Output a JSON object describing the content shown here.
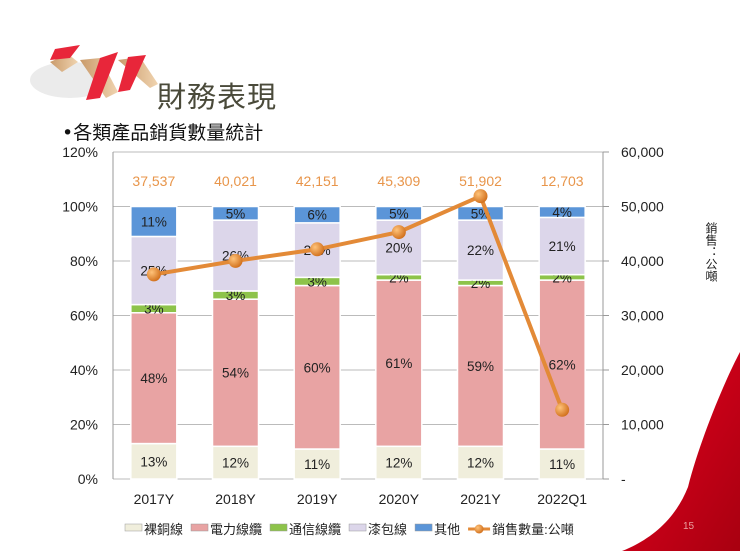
{
  "title": "財務表現",
  "subtitle": "•各類產品銷貨數量統計",
  "page_number": "15",
  "colors": {
    "bare_copper": "#f0eedc",
    "power_cable": "#e8a3a3",
    "telecom_cable": "#8dc34a",
    "enamel_wire": "#dcd6ea",
    "other": "#5b95d8",
    "sales_line": "#e38a37",
    "accent_red": "#d9001a"
  },
  "chart_data": {
    "type": "bar",
    "stacked": true,
    "categories": [
      "2017Y",
      "2018Y",
      "2019Y",
      "2020Y",
      "2021Y",
      "2022Q1"
    ],
    "series": [
      {
        "name": "裸銅線",
        "values": [
          13,
          12,
          11,
          12,
          12,
          11
        ]
      },
      {
        "name": "電力線纜",
        "values": [
          48,
          54,
          60,
          61,
          59,
          62
        ]
      },
      {
        "name": "通信線纜",
        "values": [
          3,
          3,
          3,
          2,
          2,
          2
        ]
      },
      {
        "name": "漆包線",
        "values": [
          25,
          26,
          20,
          20,
          22,
          21
        ]
      },
      {
        "name": "其他",
        "values": [
          11,
          5,
          6,
          5,
          5,
          4
        ]
      }
    ],
    "line_series": {
      "name": "銷售數量:公噸",
      "values": [
        37537,
        40021,
        42151,
        45309,
        51902,
        12703
      ],
      "labels": [
        "37,537",
        "40,021",
        "42,151",
        "45,309",
        "51,902",
        "12,703"
      ],
      "axis": "right"
    },
    "ylim": [
      0,
      120
    ],
    "y_ticks": [
      "0%",
      "20%",
      "40%",
      "60%",
      "80%",
      "100%",
      "120%"
    ],
    "y2lim": [
      0,
      60000
    ],
    "y2_ticks": [
      "-",
      "10,000",
      "20,000",
      "30,000",
      "40,000",
      "50,000",
      "60,000"
    ],
    "y2label": "銷售：公噸",
    "grid": true,
    "legend": "bottom"
  }
}
